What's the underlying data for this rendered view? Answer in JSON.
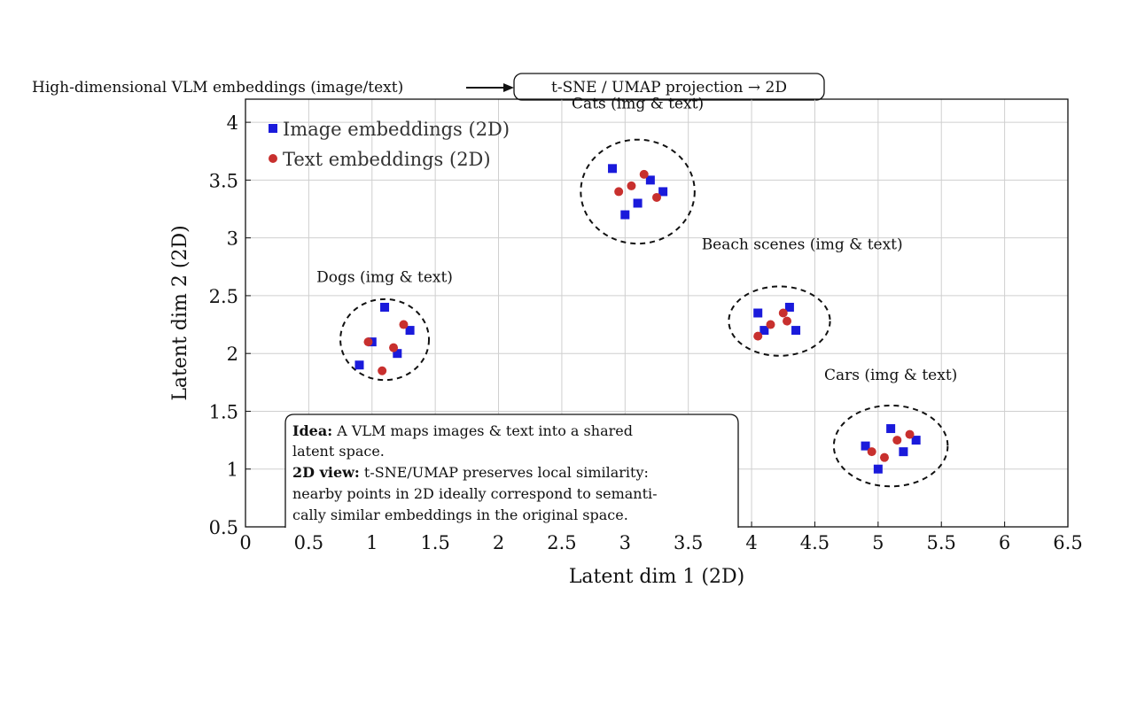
{
  "pipeline": {
    "source_text": "High-dimensional VLM embeddings (image/text)",
    "box_text": "t-SNE / UMAP projection → 2D"
  },
  "chart_data": {
    "type": "scatter",
    "title": "",
    "xlabel": "Latent dim 1 (2D)",
    "ylabel": "Latent dim 2 (2D)",
    "xlim": [
      0,
      6.5
    ],
    "ylim": [
      0.5,
      4.2
    ],
    "grid": true,
    "xticks": [
      0,
      0.5,
      1,
      1.5,
      2,
      2.5,
      3,
      3.5,
      4,
      4.5,
      5,
      5.5,
      6,
      6.5
    ],
    "xtick_labels": [
      "0",
      "0.5",
      "1",
      "1.5",
      "2",
      "2.5",
      "3",
      "3.5",
      "4",
      "4.5",
      "5",
      "5.5",
      "6",
      "6.5"
    ],
    "yticks": [
      0.5,
      1,
      1.5,
      2,
      2.5,
      3,
      3.5,
      4
    ],
    "ytick_labels": [
      "0.5",
      "1",
      "1.5",
      "2",
      "2.5",
      "3",
      "3.5",
      "4"
    ],
    "legend_position": "top-left",
    "series": [
      {
        "name": "Image embeddings (2D)",
        "marker": "square",
        "color": "#1a1adb",
        "points": [
          [
            2.9,
            3.6
          ],
          [
            3.2,
            3.5
          ],
          [
            3.3,
            3.4
          ],
          [
            3.1,
            3.3
          ],
          [
            3.0,
            3.2
          ],
          [
            1.1,
            2.4
          ],
          [
            1.3,
            2.2
          ],
          [
            1.0,
            2.1
          ],
          [
            1.2,
            2.0
          ],
          [
            0.9,
            1.9
          ],
          [
            4.05,
            2.35
          ],
          [
            4.3,
            2.4
          ],
          [
            4.1,
            2.2
          ],
          [
            4.35,
            2.2
          ],
          [
            5.1,
            1.35
          ],
          [
            5.3,
            1.25
          ],
          [
            4.9,
            1.2
          ],
          [
            5.2,
            1.15
          ],
          [
            5.0,
            1.0
          ]
        ]
      },
      {
        "name": "Text embeddings (2D)",
        "marker": "circle",
        "color": "#c8302e",
        "points": [
          [
            3.15,
            3.55
          ],
          [
            3.05,
            3.45
          ],
          [
            2.95,
            3.4
          ],
          [
            3.25,
            3.35
          ],
          [
            1.25,
            2.25
          ],
          [
            0.97,
            2.1
          ],
          [
            1.17,
            2.05
          ],
          [
            1.08,
            1.85
          ],
          [
            4.25,
            2.35
          ],
          [
            4.28,
            2.28
          ],
          [
            4.15,
            2.25
          ],
          [
            4.05,
            2.15
          ],
          [
            5.15,
            1.25
          ],
          [
            5.25,
            1.3
          ],
          [
            4.95,
            1.15
          ],
          [
            5.05,
            1.1
          ]
        ]
      }
    ],
    "clusters": [
      {
        "label": "Cats (img & text)",
        "cx": 3.1,
        "cy": 3.4,
        "rx": 0.45,
        "ry": 0.45,
        "label_x": 3.1,
        "label_y": 4.12
      },
      {
        "label": "Dogs (img & text)",
        "cx": 1.1,
        "cy": 2.12,
        "rx": 0.35,
        "ry": 0.35,
        "label_x": 1.1,
        "label_y": 2.62
      },
      {
        "label": "Beach scenes (img & text)",
        "cx": 4.22,
        "cy": 2.28,
        "rx": 0.4,
        "ry": 0.3,
        "label_x": 4.4,
        "label_y": 2.9
      },
      {
        "label": "Cars (img & text)",
        "cx": 5.1,
        "cy": 1.2,
        "rx": 0.45,
        "ry": 0.35,
        "label_x": 5.1,
        "label_y": 1.77
      }
    ],
    "annotation": {
      "idea_label": "Idea:",
      "idea_line1": "A VLM maps images & text into a shared",
      "idea_line2": "latent space.",
      "view_label": "2D view:",
      "view_line1": "t-SNE/UMAP preserves local similarity:",
      "view_line2": "nearby points in 2D ideally correspond to semanti-",
      "view_line3": "cally similar embeddings in the original space."
    }
  }
}
